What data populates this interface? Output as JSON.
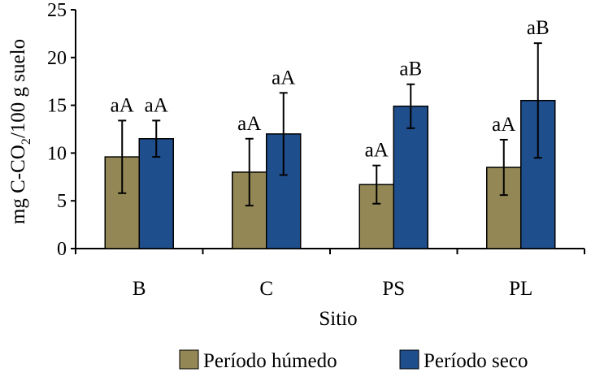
{
  "chart_data": {
    "type": "bar",
    "categories": [
      "B",
      "C",
      "PS",
      "PL"
    ],
    "series": [
      {
        "name": "Período húmedo",
        "color": "#938855",
        "values": [
          9.6,
          8.0,
          6.7,
          8.5
        ],
        "error": [
          3.8,
          3.5,
          2.0,
          2.9
        ],
        "annotations": [
          "aA",
          "aA",
          "aA",
          "aA"
        ]
      },
      {
        "name": "Período seco",
        "color": "#1F4E8C",
        "values": [
          11.5,
          12.0,
          14.9,
          15.5
        ],
        "error": [
          1.9,
          4.3,
          2.3,
          6.0
        ],
        "annotations": [
          "aA",
          "aA",
          "aB",
          "aB"
        ]
      }
    ],
    "xlabel": "Sitio",
    "ylabel_parts": [
      "mg C-CO",
      "2",
      "/100 g suelo"
    ],
    "ylim": [
      0,
      25
    ],
    "yticks": [
      0,
      5,
      10,
      15,
      20,
      25
    ],
    "grid": false,
    "legend_position": "bottom"
  }
}
